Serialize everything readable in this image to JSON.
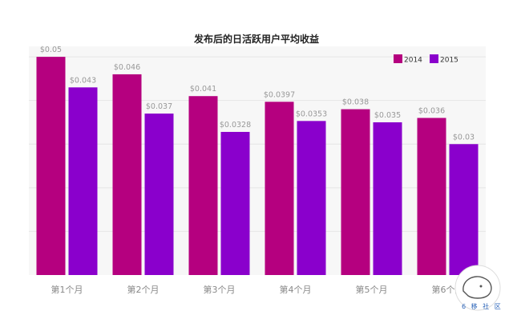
{
  "chart_data": {
    "type": "bar",
    "title": "发布后的日活跃用户平均收益",
    "xlabel": "",
    "ylabel": "",
    "categories": [
      "第1个月",
      "第2个月",
      "第3个月",
      "第4个月",
      "第5个月",
      "第6个月"
    ],
    "series": [
      {
        "name": "2014",
        "color": "#b5007f",
        "values": [
          0.05,
          0.046,
          0.041,
          0.0397,
          0.038,
          0.036
        ],
        "labels": [
          "$0.05",
          "$0.046",
          "$0.041",
          "$0.0397",
          "$0.038",
          "$0.036"
        ]
      },
      {
        "name": "2015",
        "color": "#8a00cc",
        "values": [
          0.043,
          0.037,
          0.0328,
          0.0353,
          0.035,
          0.03
        ],
        "labels": [
          "$0.043",
          "$0.037",
          "$0.0328",
          "$0.0353",
          "$0.035",
          "$0.03"
        ]
      }
    ],
    "ylim": [
      0,
      0.0524
    ],
    "grid": true,
    "legend_position": "top-right"
  },
  "watermark": {
    "text": "6 移 社 区"
  }
}
